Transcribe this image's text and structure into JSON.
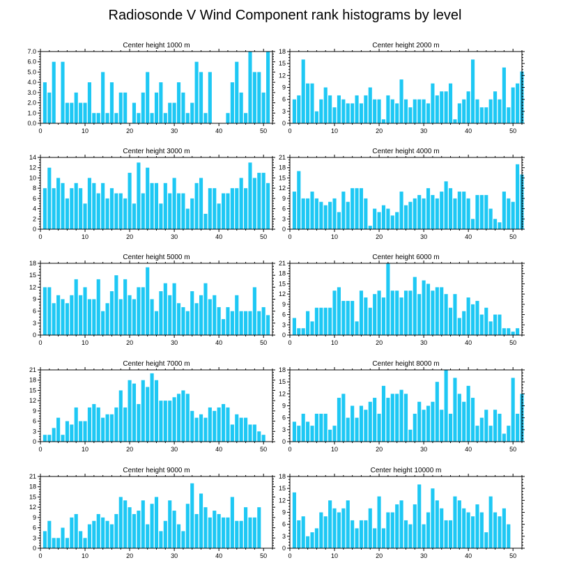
{
  "figure_title": "Radiosonde V Wind Component rank histograms by level",
  "bar_color": "#1ec8f4",
  "chart_data": [
    {
      "type": "bar",
      "title": "Center height 1000 m",
      "ylim": [
        0,
        7
      ],
      "yticks": [
        "0.0",
        "1.0",
        "2.0",
        "3.0",
        "4.0",
        "5.0",
        "6.0",
        "7.0"
      ],
      "xlim": [
        0,
        52
      ],
      "xticks": [
        "0",
        "10",
        "20",
        "30",
        "40",
        "50"
      ],
      "values": [
        4,
        3,
        6,
        0,
        6,
        2,
        2,
        3,
        2,
        2,
        4,
        1,
        1,
        5,
        1,
        4,
        1,
        3,
        3,
        0,
        2,
        1,
        3,
        5,
        1,
        3,
        4,
        1,
        2,
        2,
        4,
        3,
        1,
        2,
        6,
        5,
        1,
        5,
        0,
        0,
        0,
        1,
        4,
        6,
        3,
        1,
        7,
        5,
        5,
        3,
        7
      ]
    },
    {
      "type": "bar",
      "title": "Center height 2000 m",
      "ylim": [
        0,
        18
      ],
      "yticks": [
        "0",
        "3",
        "6",
        "9",
        "12",
        "15",
        "18"
      ],
      "xlim": [
        0,
        52
      ],
      "xticks": [
        "0",
        "10",
        "20",
        "30",
        "40",
        "50"
      ],
      "values": [
        6,
        7,
        16,
        10,
        10,
        3,
        6,
        9,
        7,
        4,
        7,
        6,
        5,
        5,
        7,
        5,
        7,
        9,
        6,
        6,
        1,
        7,
        6,
        5,
        11,
        6,
        4,
        6,
        6,
        6,
        5,
        10,
        7,
        8,
        8,
        10,
        1,
        5,
        6,
        8,
        16,
        6,
        4,
        4,
        6,
        8,
        6,
        14,
        4,
        9,
        10,
        13
      ]
    },
    {
      "type": "bar",
      "title": "Center height 3000 m",
      "ylim": [
        0,
        14
      ],
      "yticks": [
        "0",
        "2",
        "4",
        "6",
        "8",
        "10",
        "12",
        "14"
      ],
      "xlim": [
        0,
        52
      ],
      "xticks": [
        "0",
        "10",
        "20",
        "30",
        "40",
        "50"
      ],
      "values": [
        8,
        12,
        8,
        10,
        9,
        6,
        8,
        9,
        8,
        5,
        10,
        9,
        7,
        9,
        6,
        8,
        7,
        7,
        6,
        11,
        5,
        13,
        7,
        12,
        9,
        9,
        5,
        9,
        7,
        10,
        7,
        7,
        4,
        6,
        9,
        10,
        3,
        8,
        8,
        5,
        7,
        7,
        8,
        8,
        10,
        8,
        13,
        10,
        11,
        11,
        9
      ]
    },
    {
      "type": "bar",
      "title": "Center height 4000 m",
      "ylim": [
        0,
        21
      ],
      "yticks": [
        "0",
        "3",
        "6",
        "9",
        "12",
        "15",
        "18",
        "21"
      ],
      "xlim": [
        0,
        52
      ],
      "xticks": [
        "0",
        "10",
        "20",
        "30",
        "40",
        "50"
      ],
      "values": [
        11,
        17,
        9,
        9,
        11,
        9,
        8,
        7,
        8,
        9,
        5,
        11,
        8,
        12,
        12,
        12,
        9,
        1,
        6,
        5,
        7,
        6,
        4,
        5,
        11,
        7,
        8,
        9,
        10,
        9,
        12,
        10,
        9,
        11,
        14,
        12,
        9,
        11,
        11,
        9,
        3,
        10,
        10,
        10,
        6,
        3,
        2,
        11,
        9,
        8,
        19,
        16
      ]
    },
    {
      "type": "bar",
      "title": "Center height 5000 m",
      "ylim": [
        0,
        18
      ],
      "yticks": [
        "0",
        "3",
        "6",
        "9",
        "12",
        "15",
        "18"
      ],
      "xlim": [
        0,
        52
      ],
      "xticks": [
        "0",
        "10",
        "20",
        "30",
        "40",
        "50"
      ],
      "values": [
        12,
        12,
        8,
        10,
        9,
        8,
        10,
        14,
        10,
        12,
        9,
        9,
        14,
        6,
        8,
        11,
        15,
        9,
        14,
        10,
        9,
        12,
        12,
        17,
        9,
        6,
        11,
        13,
        10,
        13,
        8,
        7,
        6,
        11,
        8,
        10,
        13,
        9,
        10,
        7,
        4,
        7,
        6,
        10,
        6,
        6,
        6,
        12,
        6,
        7,
        5
      ]
    },
    {
      "type": "bar",
      "title": "Center height 6000 m",
      "ylim": [
        0,
        21
      ],
      "yticks": [
        "0",
        "3",
        "6",
        "9",
        "12",
        "15",
        "18",
        "21"
      ],
      "xlim": [
        0,
        52
      ],
      "xticks": [
        "0",
        "10",
        "20",
        "30",
        "40",
        "50"
      ],
      "values": [
        5,
        2,
        2,
        7,
        4,
        8,
        8,
        8,
        8,
        13,
        14,
        10,
        10,
        10,
        4,
        13,
        11,
        8,
        12,
        13,
        11,
        21,
        13,
        13,
        11,
        13,
        13,
        17,
        12,
        16,
        15,
        13,
        14,
        14,
        12,
        8,
        12,
        5,
        7,
        11,
        9,
        10,
        6,
        8,
        4,
        6,
        6,
        2,
        2,
        1,
        2
      ]
    },
    {
      "type": "bar",
      "title": "Center height 7000 m",
      "ylim": [
        0,
        21
      ],
      "yticks": [
        "0",
        "3",
        "6",
        "9",
        "12",
        "15",
        "18",
        "21"
      ],
      "xlim": [
        0,
        52
      ],
      "xticks": [
        "0",
        "10",
        "20",
        "30",
        "40",
        "50"
      ],
      "values": [
        2,
        2,
        4,
        7,
        2,
        6,
        5,
        10,
        6,
        6,
        10,
        11,
        10,
        7,
        8,
        8,
        10,
        15,
        10,
        18,
        17,
        11,
        18,
        16,
        20,
        18,
        12,
        12,
        12,
        13,
        14,
        15,
        14,
        9,
        7,
        8,
        7,
        10,
        9,
        10,
        11,
        10,
        5,
        8,
        7,
        7,
        5,
        5,
        3,
        2
      ]
    },
    {
      "type": "bar",
      "title": "Center height 8000 m",
      "ylim": [
        0,
        18
      ],
      "yticks": [
        "0",
        "3",
        "6",
        "9",
        "12",
        "15",
        "18"
      ],
      "xlim": [
        0,
        52
      ],
      "xticks": [
        "0",
        "10",
        "20",
        "30",
        "40",
        "50"
      ],
      "values": [
        5,
        4,
        7,
        5,
        4,
        7,
        7,
        7,
        3,
        4,
        11,
        12,
        6,
        9,
        6,
        9,
        8,
        10,
        11,
        7,
        14,
        11,
        12,
        12,
        13,
        12,
        3,
        7,
        10,
        8,
        9,
        10,
        15,
        8,
        18,
        7,
        16,
        12,
        10,
        14,
        11,
        4,
        6,
        8,
        4,
        8,
        7,
        2,
        4,
        16,
        7,
        12
      ]
    },
    {
      "type": "bar",
      "title": "Center height 9000 m",
      "ylim": [
        0,
        21
      ],
      "yticks": [
        "0",
        "3",
        "6",
        "9",
        "12",
        "15",
        "18",
        "21"
      ],
      "xlim": [
        0,
        52
      ],
      "xticks": [
        "0",
        "10",
        "20",
        "30",
        "40",
        "50"
      ],
      "values": [
        5,
        8,
        3,
        3,
        6,
        3,
        9,
        10,
        5,
        3,
        7,
        8,
        10,
        9,
        8,
        7,
        10,
        15,
        14,
        12,
        10,
        11,
        14,
        7,
        13,
        15,
        5,
        8,
        14,
        11,
        7,
        5,
        13,
        19,
        10,
        16,
        12,
        9,
        11,
        10,
        9,
        9,
        15,
        8,
        8,
        12,
        9,
        9,
        12
      ]
    },
    {
      "type": "bar",
      "title": "Center height 10000 m",
      "ylim": [
        0,
        18
      ],
      "yticks": [
        "0",
        "3",
        "6",
        "9",
        "12",
        "15",
        "18"
      ],
      "xlim": [
        0,
        52
      ],
      "xticks": [
        "0",
        "10",
        "20",
        "30",
        "40",
        "50"
      ],
      "values": [
        14,
        7,
        8,
        3,
        4,
        5,
        9,
        8,
        12,
        10,
        9,
        10,
        12,
        7,
        5,
        7,
        7,
        10,
        5,
        13,
        5,
        9,
        9,
        11,
        12,
        7,
        6,
        11,
        16,
        6,
        9,
        15,
        12,
        10,
        7,
        7,
        13,
        12,
        10,
        9,
        8,
        11,
        9,
        4,
        13,
        9,
        8,
        10,
        6
      ]
    }
  ]
}
